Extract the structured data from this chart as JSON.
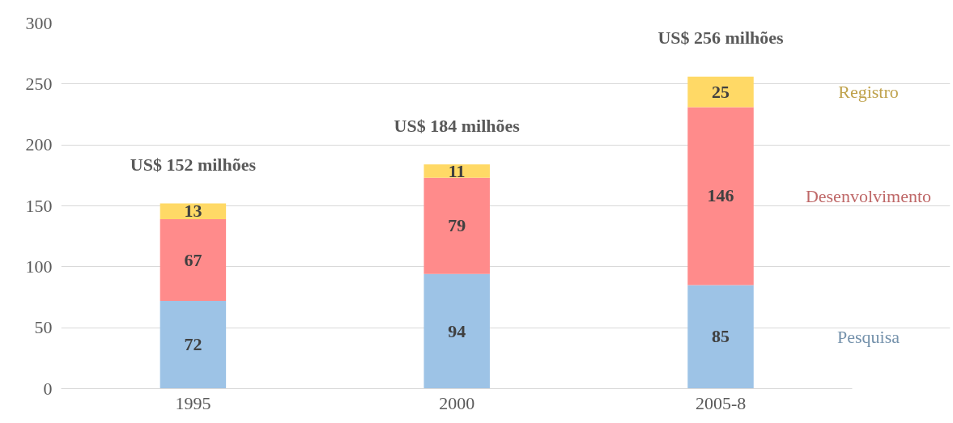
{
  "chart_data": {
    "type": "bar",
    "stacked": true,
    "categories": [
      "1995",
      "2000",
      "2005-8"
    ],
    "series": [
      {
        "name": "Pesquisa",
        "color": "#9dc3e6",
        "values": [
          72,
          94,
          85
        ]
      },
      {
        "name": "Desenvolvimento",
        "color": "#ff8b8b",
        "values": [
          67,
          79,
          146
        ]
      },
      {
        "name": "Registro",
        "color": "#ffd966",
        "values": [
          13,
          11,
          25
        ]
      }
    ],
    "totals": [
      "US$ 152 milhões",
      "US$ 184 milhões",
      "US$ 256 milhões"
    ],
    "data_labels": true,
    "ylim": [
      0,
      300
    ],
    "yticks": [
      0,
      50,
      100,
      150,
      200,
      250,
      300
    ],
    "grid": "y",
    "legend": false
  }
}
